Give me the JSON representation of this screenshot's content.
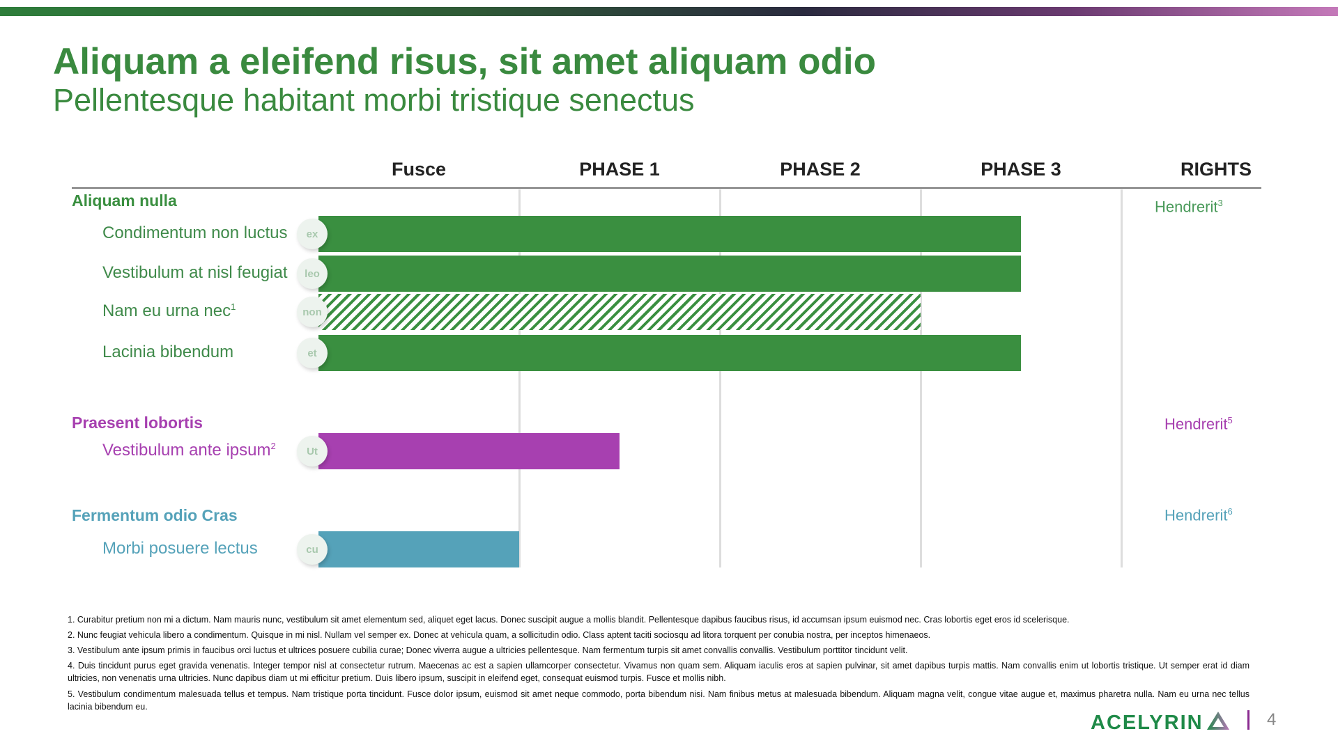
{
  "colors": {
    "green": "#3a8f40",
    "purple": "#a740b0",
    "teal": "#55a2b9",
    "title": "#3a8a3f"
  },
  "header": {
    "title": "Aliquam a eleifend risus, sit amet aliquam odio",
    "subtitle": "Pellentesque habitant morbi tristique senectus"
  },
  "chart_data": {
    "type": "bar",
    "orientation": "horizontal",
    "columns": [
      "Fusce",
      "PHASE 1",
      "PHASE 2",
      "PHASE 3",
      "RIGHTS"
    ],
    "xlim": [
      0,
      4
    ],
    "groups": [
      {
        "name": "Aliquam nulla",
        "color": "#3a8f40",
        "rights": "Hendrerit",
        "rights_sup": "3",
        "rows": [
          {
            "label": "Condimentum non luctus",
            "sup": "",
            "badge": "ex",
            "value": 3.5,
            "hatched": false
          },
          {
            "label": "Vestibulum at nisl feugiat",
            "sup": "",
            "badge": "leo",
            "value": 3.5,
            "hatched": false
          },
          {
            "label": "Nam eu urna nec",
            "sup": "1",
            "badge": "non",
            "value": 3.0,
            "hatched": true
          },
          {
            "label": "Lacinia bibendum",
            "sup": "",
            "badge": "et",
            "value": 3.5,
            "hatched": false
          }
        ]
      },
      {
        "name": "Praesent lobortis",
        "color": "#a740b0",
        "rights": "Hendrerit",
        "rights_sup": "5",
        "rows": [
          {
            "label": "Vestibulum ante ipsum",
            "sup": "2",
            "badge": "Ut",
            "value": 1.5,
            "hatched": false
          }
        ]
      },
      {
        "name": "Fermentum odio Cras",
        "color": "#55a2b9",
        "rights": "Hendrerit",
        "rights_sup": "6",
        "rows": [
          {
            "label": "Morbi posuere lectus",
            "sup": "",
            "badge": "cu",
            "value": 1.0,
            "hatched": false
          }
        ]
      }
    ]
  },
  "footnotes": [
    "1. Curabitur pretium non mi a dictum. Nam mauris nunc, vestibulum sit amet elementum sed, aliquet eget lacus. Donec suscipit augue a mollis blandit. Pellentesque dapibus faucibus risus, id accumsan ipsum euismod nec. Cras lobortis eget eros id scelerisque.",
    "2. Nunc feugiat vehicula libero a condimentum. Quisque in mi nisl. Nullam vel semper ex. Donec at vehicula quam, a sollicitudin odio. Class aptent taciti sociosqu ad litora torquent per conubia nostra, per inceptos himenaeos.",
    "3. Vestibulum ante ipsum primis in faucibus orci luctus et ultrices posuere cubilia curae; Donec viverra augue a ultricies pellentesque. Nam fermentum turpis sit amet convallis convallis. Vestibulum porttitor tincidunt velit.",
    "4. Duis tincidunt purus eget gravida venenatis. Integer tempor nisl at consectetur rutrum. Maecenas ac est a sapien ullamcorper consectetur. Vivamus non quam sem. Aliquam iaculis eros at sapien pulvinar, sit amet dapibus turpis mattis. Nam convallis enim ut lobortis tristique. Ut semper erat id diam ultricies, non venenatis urna ultricies. Nunc dapibus diam ut mi efficitur pretium. Duis libero ipsum, suscipit in eleifend eget, consequat euismod turpis. Fusce et mollis nibh.",
    "5. Vestibulum condimentum malesuada tellus et tempus. Nam tristique porta tincidunt. Fusce dolor ipsum, euismod sit amet neque commodo, porta bibendum nisi. Nam finibus metus at malesuada bibendum. Aliquam magna velit, congue vitae augue et, maximus pharetra nulla. Nam eu urna nec tellus lacinia bibendum eu."
  ],
  "footer": {
    "logo": "ACELYRIN",
    "page": "4"
  }
}
